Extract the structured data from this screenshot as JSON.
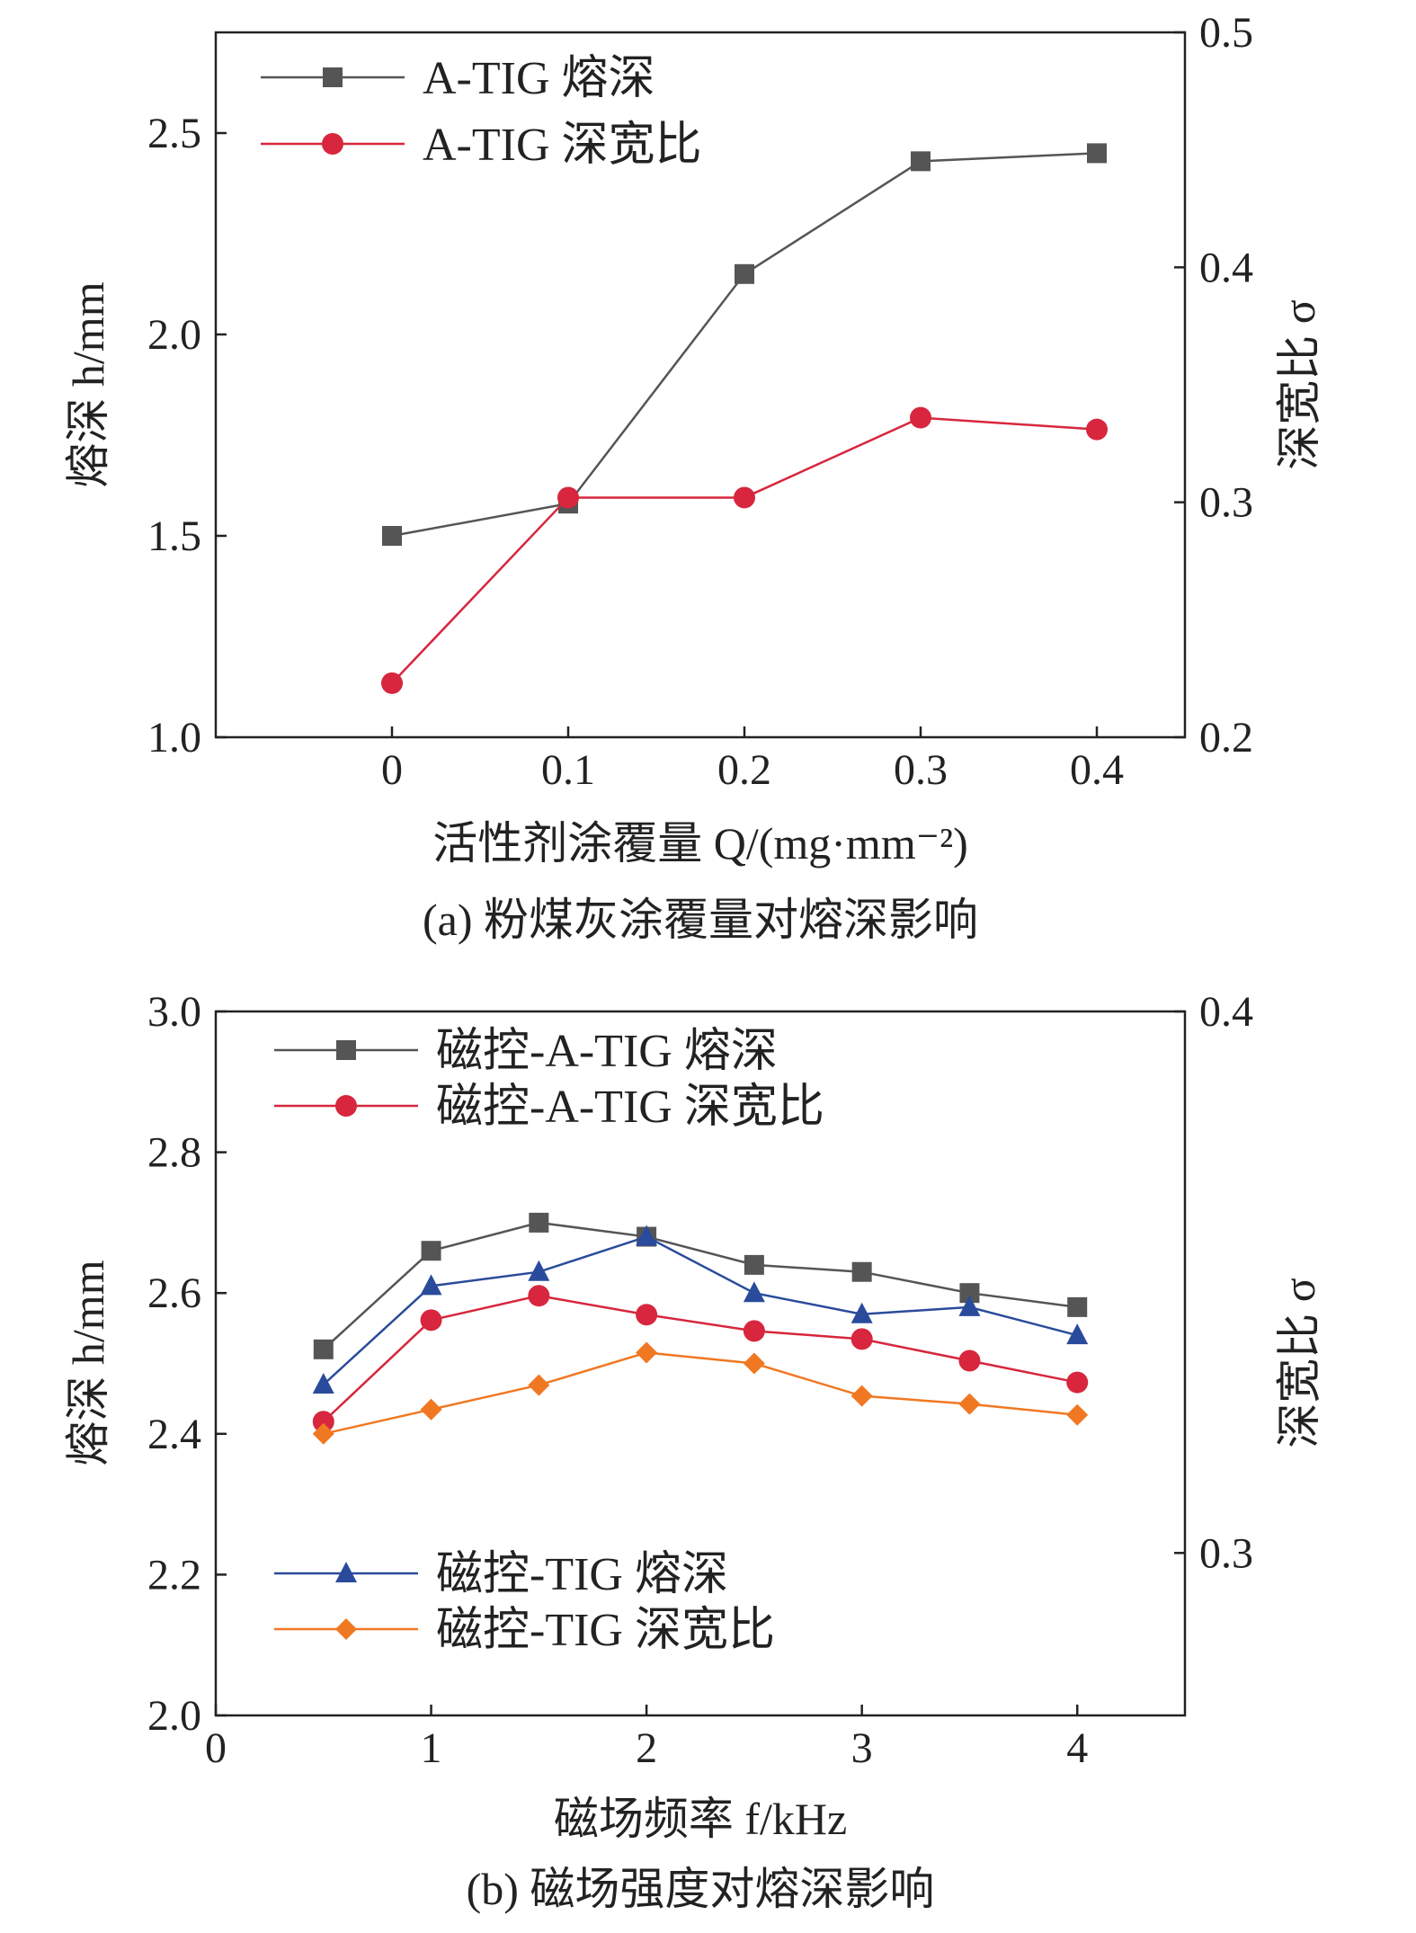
{
  "chart_data": [
    {
      "type": "line",
      "caption": "(a) 粉煤灰涂覆量对熔深影响",
      "xlabel": "活性剂涂覆量 Q/(mg·mm⁻²)",
      "ylabel": "熔深 h/mm",
      "y2label": "深宽比 σ",
      "xlim": [
        -0.1,
        0.45
      ],
      "ylim": [
        1.0,
        2.75
      ],
      "y2lim": [
        0.2,
        0.5
      ],
      "x_ticks": [
        "0",
        "0.1",
        "0.2",
        "0.3",
        "0.4"
      ],
      "y_ticks": [
        "1.0",
        "1.5",
        "2.0",
        "2.5"
      ],
      "y2_ticks": [
        "0.2",
        "0.3",
        "0.4",
        "0.5"
      ],
      "x": [
        0,
        0.1,
        0.2,
        0.3,
        0.4
      ],
      "series": [
        {
          "name": "A-TIG 熔深",
          "axis": "left",
          "marker": "square",
          "color": "#555555",
          "values": [
            1.5,
            1.58,
            2.15,
            2.43,
            2.45
          ]
        },
        {
          "name": "A-TIG 深宽比",
          "axis": "right",
          "marker": "circle",
          "color": "#d7263d",
          "values": [
            0.223,
            0.302,
            0.302,
            0.336,
            0.331
          ]
        }
      ]
    },
    {
      "type": "line",
      "caption": "(b) 磁场强度对熔深影响",
      "xlabel": "磁场频率 f/kHz",
      "ylabel": "熔深 h/mm",
      "y2label": "深宽比 σ",
      "xlim": [
        0,
        4.5
      ],
      "ylim": [
        2.0,
        3.0
      ],
      "y2lim": [
        0.27,
        0.4
      ],
      "x_ticks": [
        "0",
        "1",
        "2",
        "3",
        "4"
      ],
      "y_ticks": [
        "2.0",
        "2.2",
        "2.4",
        "2.6",
        "2.8",
        "3.0"
      ],
      "y2_ticks": [
        "0.3",
        "0.4"
      ],
      "x": [
        0.5,
        1.0,
        1.5,
        2.0,
        2.5,
        3.0,
        3.5,
        4.0
      ],
      "series": [
        {
          "name": "磁控-A-TIG 熔深",
          "axis": "left",
          "marker": "square",
          "color": "#555555",
          "values": [
            2.52,
            2.66,
            2.7,
            2.68,
            2.64,
            2.63,
            2.6,
            2.58
          ]
        },
        {
          "name": "磁控-A-TIG 深宽比",
          "axis": "right",
          "marker": "circle",
          "color": "#d7263d",
          "values": [
            0.32425,
            0.343,
            0.3475,
            0.344,
            0.341,
            0.3395,
            0.3355,
            0.3315
          ]
        },
        {
          "name": "磁控-TIG 熔深",
          "axis": "left",
          "marker": "triangle",
          "color": "#2a4b9b",
          "values": [
            2.47,
            2.61,
            2.63,
            2.68,
            2.6,
            2.57,
            2.58,
            2.54
          ]
        },
        {
          "name": "磁控-TIG 深宽比",
          "axis": "right",
          "marker": "diamond",
          "color": "#f07822",
          "values": [
            0.322,
            0.3265,
            0.331,
            0.337,
            0.335,
            0.329,
            0.3275,
            0.3255
          ]
        }
      ]
    }
  ]
}
